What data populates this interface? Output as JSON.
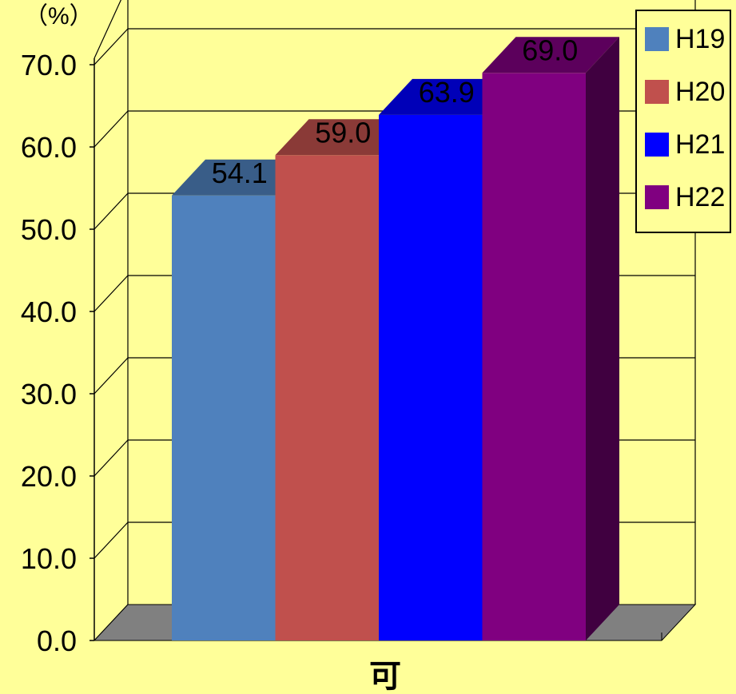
{
  "chart_data": {
    "type": "bar",
    "unit_label": "（%）",
    "categories": [
      "可"
    ],
    "series": [
      {
        "name": "H19",
        "values": [
          54.1
        ],
        "label": "54.1",
        "color": "#4F81BD"
      },
      {
        "name": "H20",
        "values": [
          59.0
        ],
        "label": "59.0",
        "color": "#C0504D"
      },
      {
        "name": "H21",
        "values": [
          63.9
        ],
        "label": "63.9",
        "color": "#0000FF"
      },
      {
        "name": "H22",
        "values": [
          69.0
        ],
        "label": "69.0",
        "color": "#800080"
      }
    ],
    "yticks": [
      "0.0",
      "10.0",
      "20.0",
      "30.0",
      "40.0",
      "50.0",
      "60.0",
      "70.0"
    ],
    "ylim": [
      0,
      70
    ],
    "grid": true,
    "legend_position": "top-right",
    "style": "3d-bar"
  }
}
